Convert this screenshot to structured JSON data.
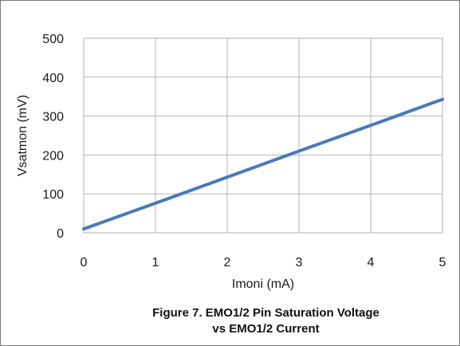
{
  "chart_data": {
    "type": "line",
    "xlabel": "Imoni (mA)",
    "ylabel": "Vsatmon (mV)",
    "xlim": [
      0,
      5
    ],
    "ylim": [
      0,
      500
    ],
    "x_ticks": [
      "0",
      "1",
      "2",
      "3",
      "4",
      "5"
    ],
    "y_ticks": [
      "0",
      "100",
      "200",
      "300",
      "400",
      "500"
    ],
    "grid": true,
    "series": [
      {
        "x": [
          0,
          1,
          2,
          3,
          4,
          5
        ],
        "values": [
          10,
          76,
          143,
          210,
          276,
          343
        ],
        "color": "#4a7ab8"
      }
    ]
  },
  "caption": {
    "line1": "Figure 7.  EMO1/2 Pin Saturation Voltage",
    "line2": "vs EMO1/2 Current"
  }
}
